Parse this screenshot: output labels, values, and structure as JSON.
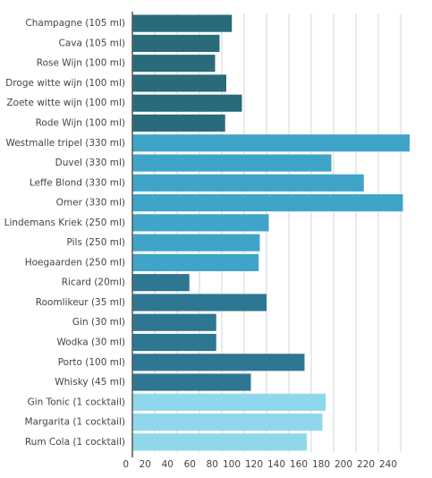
{
  "chart_data": {
    "type": "hbar",
    "categories": [
      "Champagne (105 ml)",
      "Cava (105 ml)",
      "Rose Wijn (100 ml)",
      "Droge witte wijn (100 ml)",
      "Zoete witte wijn (100 ml)",
      "Rode Wijn (100 ml)",
      "Westmalle tripel (330 ml)",
      "Duvel (330 ml)",
      "Leffe Blond (330 ml)",
      "Omer (330 ml)",
      "Lindemans Kriek (250 ml)",
      "Pils (250 ml)",
      "Hoegaarden (250 ml)",
      "Ricard (20ml)",
      "Roomlikeur (35 ml)",
      "Gin (30 ml)",
      "Wodka (30 ml)",
      "Porto (100 ml)",
      "Whisky (45 ml)",
      "Gin Tonic (1 cocktail)",
      "Margarita (1 cocktail)",
      "Rum Cola (1 cocktail)"
    ],
    "values": [
      89,
      78,
      74,
      84,
      98,
      83,
      248,
      178,
      207,
      242,
      122,
      114,
      113,
      51,
      120,
      75,
      75,
      154,
      106,
      173,
      170,
      156
    ],
    "colors": [
      "#2a6b7b",
      "#2a6b7b",
      "#2a6b7b",
      "#2a6b7b",
      "#2a6b7b",
      "#2a6b7b",
      "#40a4c9",
      "#40a4c9",
      "#40a4c9",
      "#40a4c9",
      "#40a4c9",
      "#40a4c9",
      "#40a4c9",
      "#2e7793",
      "#2e7793",
      "#2e7793",
      "#2e7793",
      "#2e7793",
      "#2e7793",
      "#8fd8ec",
      "#8fd8ec",
      "#8fd8ec"
    ],
    "xlim": [
      0,
      248
    ],
    "xticks": [
      0,
      20,
      40,
      60,
      80,
      100,
      120,
      140,
      160,
      180,
      200,
      220,
      240
    ],
    "grid": true
  }
}
